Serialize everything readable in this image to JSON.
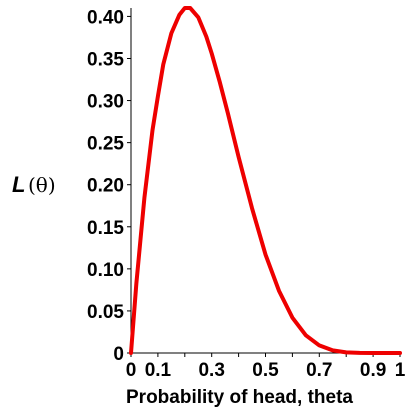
{
  "chart_data": {
    "type": "line",
    "xlabel": "Probability of head, theta",
    "ylabel": {
      "main": "L",
      "argument": "(θ)"
    },
    "xlim": [
      0,
      1
    ],
    "ylim": [
      0,
      0.41
    ],
    "x_ticks": [
      {
        "value": 0,
        "label": "0"
      },
      {
        "value": 0.1,
        "label": "0.1"
      },
      {
        "value": 0.3,
        "label": "0.3"
      },
      {
        "value": 0.5,
        "label": "0.5"
      },
      {
        "value": 0.7,
        "label": "0.7"
      },
      {
        "value": 0.9,
        "label": "0.9"
      },
      {
        "value": 1,
        "label": "1"
      }
    ],
    "y_ticks": [
      {
        "value": 0,
        "label": "0"
      },
      {
        "value": 0.05,
        "label": "0.05"
      },
      {
        "value": 0.1,
        "label": "0.10"
      },
      {
        "value": 0.15,
        "label": "0.15"
      },
      {
        "value": 0.2,
        "label": "0.20"
      },
      {
        "value": 0.25,
        "label": "0.25"
      },
      {
        "value": 0.3,
        "label": "0.30"
      },
      {
        "value": 0.35,
        "label": "0.35"
      },
      {
        "value": 0.4,
        "label": "0.40"
      }
    ],
    "grid": false,
    "series": [
      {
        "color": "#ee0000",
        "x": [
          0,
          0.02,
          0.05,
          0.08,
          0.1,
          0.12,
          0.15,
          0.18,
          0.2,
          0.22,
          0.25,
          0.28,
          0.3,
          0.33,
          0.36,
          0.4,
          0.45,
          0.5,
          0.55,
          0.6,
          0.65,
          0.7,
          0.75,
          0.8,
          0.85,
          0.9,
          0.95,
          1
        ],
        "y": [
          0,
          0.083,
          0.185,
          0.265,
          0.305,
          0.343,
          0.38,
          0.402,
          0.41,
          0.41,
          0.399,
          0.376,
          0.356,
          0.322,
          0.285,
          0.233,
          0.172,
          0.117,
          0.074,
          0.042,
          0.021,
          0.009,
          0.0031,
          0.00077,
          0.00011,
          5e-06,
          0,
          0
        ]
      }
    ]
  }
}
